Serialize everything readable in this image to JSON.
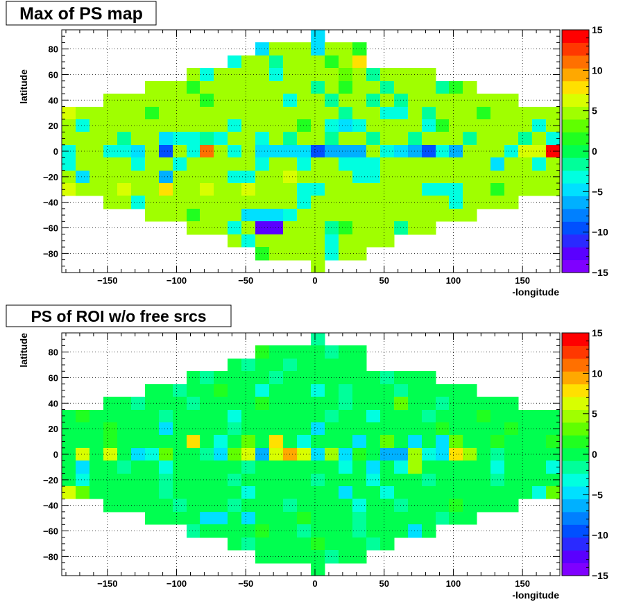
{
  "colors": {
    "palette": [
      "#7f00ff",
      "#5a00ff",
      "#2a2aff",
      "#0050ff",
      "#0080ff",
      "#00b0ff",
      "#00e0ff",
      "#00ffe0",
      "#00ff9a",
      "#00ff50",
      "#20ff20",
      "#60ff00",
      "#a0ff00",
      "#d8ff00",
      "#ffe000",
      "#ffa800",
      "#ff7000",
      "#ff3800",
      "#ff0000"
    ],
    "frame": "#000000",
    "grid": "#000000"
  },
  "chart_data": [
    {
      "type": "heatmap",
      "title": "Max of PS map",
      "xlabel": "-longitude",
      "ylabel": "latitude",
      "xlim": [
        -183,
        177
      ],
      "ylim": [
        -95,
        95
      ],
      "zlim": [
        -15,
        15
      ],
      "x_ticks": [
        "-150",
        "-100",
        "-50",
        "0",
        "50",
        "100",
        "150"
      ],
      "y_ticks": [
        "-80",
        "-60",
        "-40",
        "-20",
        "0",
        "20",
        "40",
        "60",
        "80"
      ],
      "z_ticks": [
        "-15",
        "-10",
        "-5",
        "0",
        "5",
        "10",
        "15"
      ],
      "grid": true,
      "legend": "right colorbar",
      "bin_width": 10,
      "bin_height": 10,
      "dominant_value": 4,
      "row_lat": [
        90,
        80,
        70,
        60,
        50,
        40,
        30,
        20,
        10,
        0,
        -10,
        -20,
        -30,
        -40,
        -50,
        -60,
        -70,
        -80,
        -90
      ],
      "row_lon_range": [
        [
          -3,
          7
        ],
        [
          -43,
          37
        ],
        [
          -63,
          37
        ],
        [
          -93,
          87
        ],
        [
          -123,
          117
        ],
        [
          -153,
          147
        ],
        [
          -183,
          177
        ],
        [
          -183,
          177
        ],
        [
          -183,
          177
        ],
        [
          -183,
          177
        ],
        [
          -183,
          177
        ],
        [
          -183,
          177
        ],
        [
          -183,
          177
        ],
        [
          -153,
          147
        ],
        [
          -123,
          117
        ],
        [
          -93,
          87
        ],
        [
          -63,
          57
        ],
        [
          -43,
          37
        ],
        [
          -3,
          7
        ]
      ],
      "cells": [
        [
          90,
          0,
          -4
        ],
        [
          80,
          -40,
          -4
        ],
        [
          80,
          0,
          -4
        ],
        [
          80,
          30,
          1
        ],
        [
          80,
          40,
          3
        ],
        [
          70,
          -60,
          -3
        ],
        [
          70,
          -30,
          -1
        ],
        [
          70,
          10,
          2
        ],
        [
          70,
          30,
          8
        ],
        [
          60,
          -80,
          -3
        ],
        [
          60,
          -30,
          -3
        ],
        [
          60,
          20,
          3
        ],
        [
          60,
          40,
          -1
        ],
        [
          50,
          -90,
          2
        ],
        [
          50,
          0,
          -2
        ],
        [
          50,
          20,
          2
        ],
        [
          50,
          50,
          -2
        ],
        [
          50,
          90,
          -1
        ],
        [
          50,
          100,
          1
        ],
        [
          40,
          -80,
          2
        ],
        [
          40,
          -20,
          -3
        ],
        [
          40,
          10,
          -1
        ],
        [
          40,
          40,
          -2
        ],
        [
          40,
          60,
          -1
        ],
        [
          30,
          -180,
          6
        ],
        [
          30,
          -120,
          2
        ],
        [
          30,
          20,
          -2
        ],
        [
          30,
          50,
          -3
        ],
        [
          30,
          60,
          -3
        ],
        [
          30,
          80,
          -2
        ],
        [
          30,
          120,
          2
        ],
        [
          20,
          -170,
          -3
        ],
        [
          20,
          -60,
          -3
        ],
        [
          20,
          -10,
          2
        ],
        [
          20,
          10,
          -3
        ],
        [
          20,
          20,
          -5
        ],
        [
          20,
          30,
          -3
        ],
        [
          20,
          80,
          -3
        ],
        [
          20,
          90,
          1
        ],
        [
          20,
          160,
          -3
        ],
        [
          10,
          -140,
          -2
        ],
        [
          10,
          -110,
          -4
        ],
        [
          10,
          -100,
          -3
        ],
        [
          10,
          -90,
          -3
        ],
        [
          10,
          -80,
          -2
        ],
        [
          10,
          -70,
          -3
        ],
        [
          10,
          -40,
          -3
        ],
        [
          10,
          -20,
          -2
        ],
        [
          10,
          10,
          -2
        ],
        [
          10,
          40,
          -2
        ],
        [
          10,
          70,
          -2
        ],
        [
          10,
          110,
          -2
        ],
        [
          10,
          150,
          -2
        ],
        [
          10,
          170,
          -3
        ],
        [
          0,
          -180,
          -3
        ],
        [
          0,
          -150,
          -3
        ],
        [
          0,
          -140,
          -3
        ],
        [
          0,
          -130,
          -4
        ],
        [
          0,
          -110,
          -9
        ],
        [
          0,
          -90,
          -3
        ],
        [
          0,
          -80,
          11
        ],
        [
          0,
          -60,
          -3
        ],
        [
          0,
          -40,
          -4
        ],
        [
          0,
          -30,
          -5
        ],
        [
          0,
          -20,
          -5
        ],
        [
          0,
          -10,
          -4
        ],
        [
          0,
          0,
          -9
        ],
        [
          0,
          10,
          -6
        ],
        [
          0,
          20,
          -7
        ],
        [
          0,
          30,
          -7
        ],
        [
          0,
          50,
          -3
        ],
        [
          0,
          60,
          -4
        ],
        [
          0,
          70,
          -7
        ],
        [
          0,
          80,
          -9
        ],
        [
          0,
          90,
          -3
        ],
        [
          0,
          100,
          -6
        ],
        [
          0,
          140,
          -3
        ],
        [
          0,
          150,
          7
        ],
        [
          0,
          160,
          7
        ],
        [
          0,
          170,
          15
        ],
        [
          -10,
          -180,
          -3
        ],
        [
          -10,
          -130,
          -3
        ],
        [
          -10,
          -100,
          -3
        ],
        [
          -10,
          -40,
          -3
        ],
        [
          -10,
          -10,
          -3
        ],
        [
          -10,
          20,
          -3
        ],
        [
          -10,
          30,
          -3
        ],
        [
          -10,
          40,
          -3
        ],
        [
          -10,
          130,
          -4
        ],
        [
          -10,
          160,
          -3
        ],
        [
          -20,
          -170,
          -5
        ],
        [
          -20,
          -150,
          5
        ],
        [
          -20,
          -110,
          -6
        ],
        [
          -20,
          -60,
          -3
        ],
        [
          -20,
          -50,
          -3
        ],
        [
          -20,
          -20,
          7
        ],
        [
          -20,
          30,
          -3
        ],
        [
          -20,
          40,
          -3
        ],
        [
          -30,
          -180,
          6
        ],
        [
          -30,
          -140,
          6
        ],
        [
          -30,
          -110,
          8
        ],
        [
          -30,
          -80,
          6
        ],
        [
          -30,
          -50,
          6
        ],
        [
          -30,
          -10,
          -3
        ],
        [
          -30,
          0,
          -3
        ],
        [
          -30,
          80,
          -3
        ],
        [
          -30,
          90,
          -3
        ],
        [
          -30,
          100,
          -3
        ],
        [
          -30,
          130,
          2
        ],
        [
          -40,
          -130,
          -3
        ],
        [
          -40,
          -10,
          -3
        ],
        [
          -40,
          100,
          -3
        ],
        [
          -50,
          -90,
          2
        ],
        [
          -50,
          -50,
          -4
        ],
        [
          -50,
          -40,
          -5
        ],
        [
          -50,
          -30,
          -5
        ],
        [
          -50,
          -20,
          -3
        ],
        [
          -60,
          -60,
          -3
        ],
        [
          -60,
          -40,
          -12
        ],
        [
          -60,
          -30,
          -12
        ],
        [
          -60,
          10,
          -2
        ],
        [
          -60,
          20,
          2
        ],
        [
          -60,
          60,
          -2
        ],
        [
          -70,
          -50,
          -3
        ],
        [
          -70,
          10,
          -3
        ],
        [
          -80,
          -40,
          1
        ],
        [
          -80,
          10,
          -3
        ]
      ]
    },
    {
      "type": "heatmap",
      "title": "PS of ROI w/o free srcs",
      "xlabel": "-longitude",
      "ylabel": "latitude",
      "xlim": [
        -183,
        177
      ],
      "ylim": [
        -95,
        95
      ],
      "zlim": [
        -15,
        15
      ],
      "x_ticks": [
        "-150",
        "-100",
        "-50",
        "0",
        "50",
        "100",
        "150"
      ],
      "y_ticks": [
        "-80",
        "-60",
        "-40",
        "-20",
        "0",
        "20",
        "40",
        "60",
        "80"
      ],
      "z_ticks": [
        "-15",
        "-10",
        "-5",
        "0",
        "5",
        "10",
        "15"
      ],
      "grid": true,
      "legend": "right colorbar",
      "bin_width": 10,
      "bin_height": 10,
      "dominant_value": 0,
      "row_lat": [
        90,
        80,
        70,
        60,
        50,
        40,
        30,
        20,
        10,
        0,
        -10,
        -20,
        -30,
        -40,
        -50,
        -60,
        -70,
        -80,
        -90
      ],
      "row_lon_range": [
        [
          -3,
          7
        ],
        [
          -43,
          37
        ],
        [
          -63,
          37
        ],
        [
          -93,
          87
        ],
        [
          -123,
          117
        ],
        [
          -153,
          147
        ],
        [
          -183,
          177
        ],
        [
          -183,
          177
        ],
        [
          -183,
          177
        ],
        [
          -183,
          177
        ],
        [
          -183,
          177
        ],
        [
          -183,
          177
        ],
        [
          -183,
          177
        ],
        [
          -153,
          147
        ],
        [
          -123,
          117
        ],
        [
          -93,
          87
        ],
        [
          -63,
          57
        ],
        [
          -43,
          37
        ],
        [
          -3,
          7
        ]
      ],
      "cells": [
        [
          90,
          0,
          -2
        ],
        [
          80,
          -40,
          1
        ],
        [
          80,
          10,
          -2
        ],
        [
          70,
          -50,
          -2
        ],
        [
          70,
          -20,
          -2
        ],
        [
          70,
          40,
          -2
        ],
        [
          60,
          -80,
          -2
        ],
        [
          60,
          -30,
          -2
        ],
        [
          60,
          50,
          -2
        ],
        [
          50,
          -100,
          -2
        ],
        [
          50,
          -70,
          1
        ],
        [
          50,
          -40,
          -3
        ],
        [
          50,
          0,
          -3
        ],
        [
          50,
          20,
          -2
        ],
        [
          50,
          60,
          -1
        ],
        [
          40,
          -130,
          -2
        ],
        [
          40,
          -90,
          -2
        ],
        [
          40,
          -40,
          1
        ],
        [
          40,
          20,
          -2
        ],
        [
          40,
          60,
          3
        ],
        [
          40,
          90,
          -2
        ],
        [
          30,
          -170,
          2
        ],
        [
          30,
          -110,
          -2
        ],
        [
          30,
          -60,
          -3
        ],
        [
          30,
          10,
          -2
        ],
        [
          30,
          40,
          -3
        ],
        [
          30,
          80,
          -2
        ],
        [
          30,
          120,
          1
        ],
        [
          20,
          -150,
          1
        ],
        [
          20,
          -110,
          -4
        ],
        [
          20,
          -60,
          -2
        ],
        [
          20,
          0,
          -4
        ],
        [
          20,
          90,
          1
        ],
        [
          20,
          140,
          2
        ],
        [
          10,
          -150,
          2
        ],
        [
          10,
          -90,
          8
        ],
        [
          10,
          -70,
          -3
        ],
        [
          10,
          -50,
          3
        ],
        [
          10,
          -30,
          8
        ],
        [
          10,
          -10,
          -3
        ],
        [
          10,
          30,
          -4
        ],
        [
          10,
          50,
          3
        ],
        [
          10,
          70,
          -4
        ],
        [
          10,
          90,
          -4
        ],
        [
          10,
          100,
          3
        ],
        [
          10,
          130,
          2
        ],
        [
          10,
          170,
          1
        ],
        [
          0,
          -170,
          6
        ],
        [
          0,
          -150,
          7
        ],
        [
          0,
          -130,
          -4
        ],
        [
          0,
          -120,
          -3
        ],
        [
          0,
          -110,
          3
        ],
        [
          0,
          -80,
          -2
        ],
        [
          0,
          -70,
          -5
        ],
        [
          0,
          -60,
          3
        ],
        [
          0,
          -50,
          6
        ],
        [
          0,
          -40,
          -6
        ],
        [
          0,
          -30,
          6
        ],
        [
          0,
          -20,
          10
        ],
        [
          0,
          -10,
          7
        ],
        [
          0,
          0,
          -4
        ],
        [
          0,
          10,
          4
        ],
        [
          0,
          20,
          -5
        ],
        [
          0,
          30,
          2
        ],
        [
          0,
          50,
          -6
        ],
        [
          0,
          60,
          -6
        ],
        [
          0,
          70,
          5
        ],
        [
          0,
          80,
          -3
        ],
        [
          0,
          90,
          -4
        ],
        [
          0,
          100,
          8
        ],
        [
          0,
          110,
          5
        ],
        [
          0,
          130,
          -2
        ],
        [
          -10,
          -170,
          -4
        ],
        [
          -10,
          -140,
          -2
        ],
        [
          -10,
          -110,
          -3
        ],
        [
          -10,
          -50,
          -2
        ],
        [
          -10,
          20,
          -3
        ],
        [
          -10,
          40,
          -4
        ],
        [
          -10,
          60,
          -3
        ],
        [
          -10,
          70,
          5
        ],
        [
          -10,
          130,
          -3
        ],
        [
          -10,
          170,
          -3
        ],
        [
          -20,
          -170,
          -3
        ],
        [
          -20,
          -110,
          -2
        ],
        [
          -20,
          -60,
          -2
        ],
        [
          -20,
          0,
          -2
        ],
        [
          -20,
          40,
          -3
        ],
        [
          -20,
          80,
          -2
        ],
        [
          -20,
          130,
          -2
        ],
        [
          -30,
          -180,
          6
        ],
        [
          -30,
          -170,
          3
        ],
        [
          -30,
          -110,
          -2
        ],
        [
          -30,
          -50,
          -3
        ],
        [
          -30,
          20,
          -4
        ],
        [
          -30,
          50,
          -3
        ],
        [
          -30,
          160,
          -3
        ],
        [
          -30,
          170,
          3
        ],
        [
          -40,
          -100,
          -2
        ],
        [
          -40,
          -60,
          -2
        ],
        [
          -40,
          -20,
          -2
        ],
        [
          -40,
          30,
          -3
        ],
        [
          -40,
          60,
          -2
        ],
        [
          -40,
          100,
          1
        ],
        [
          -50,
          -80,
          -4
        ],
        [
          -50,
          -70,
          -4
        ],
        [
          -50,
          -50,
          -4
        ],
        [
          -50,
          -10,
          1
        ],
        [
          -50,
          30,
          -2
        ],
        [
          -50,
          90,
          -2
        ],
        [
          -60,
          -90,
          -2
        ],
        [
          -60,
          -40,
          2
        ],
        [
          -60,
          -10,
          -2
        ],
        [
          -60,
          30,
          -2
        ],
        [
          -60,
          70,
          -4
        ],
        [
          -70,
          -50,
          -2
        ],
        [
          -70,
          0,
          1
        ],
        [
          -70,
          40,
          -2
        ],
        [
          -80,
          10,
          -2
        ]
      ]
    }
  ]
}
